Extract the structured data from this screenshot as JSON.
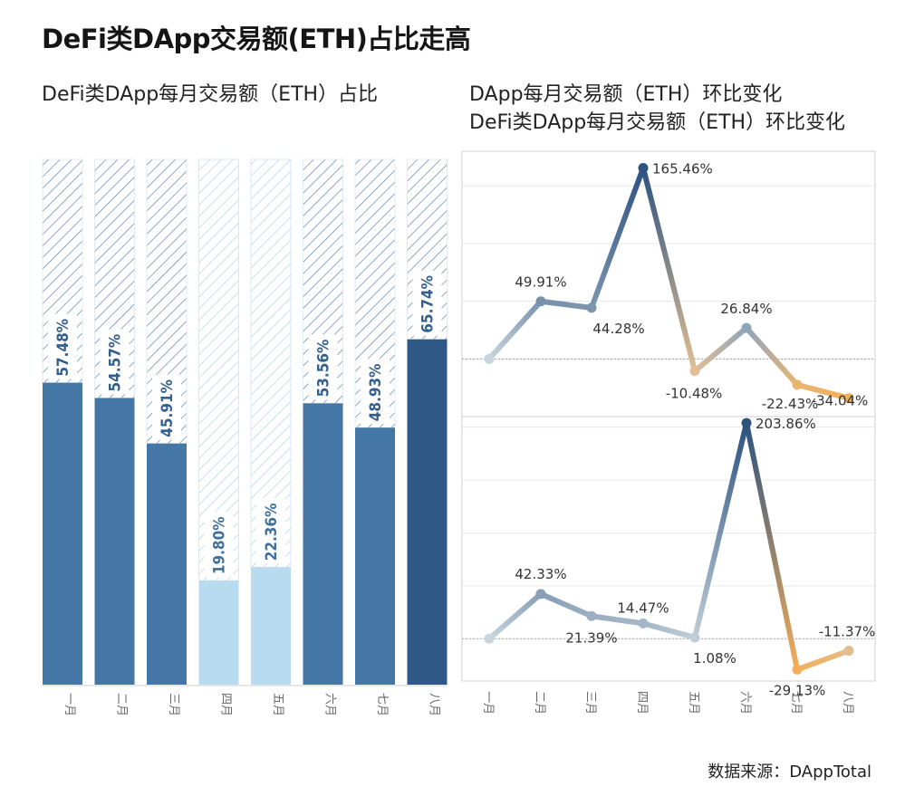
{
  "title": "DeFi类DApp交易额(ETH)占比走高",
  "left_subtitle": "DeFi类DApp每月交易额（ETH）占比",
  "right_subtitle_1": "DApp每月交易额（ETH）环比变化",
  "right_subtitle_2": "DeFi类DApp每月交易额（ETH）环比变化",
  "source": "数据来源：DAppTotal",
  "colors": {
    "bar_dark": "#2e5987",
    "bar_mid": "#4577a6",
    "bar_light": "#b9dbef",
    "line_high": "#2c5280",
    "line_low": "#f2ae5a",
    "line_mid": "#9ec9e6"
  },
  "chart_data": [
    {
      "type": "bar",
      "title": "DeFi类DApp每月交易额（ETH）占比",
      "categories": [
        "一月",
        "二月",
        "三月",
        "四月",
        "五月",
        "六月",
        "七月",
        "八月"
      ],
      "values": [
        57.48,
        54.57,
        45.91,
        19.8,
        22.36,
        53.56,
        48.93,
        65.74
      ],
      "labels": [
        "57.48%",
        "54.57%",
        "45.91%",
        "19.80%",
        "22.36%",
        "53.56%",
        "48.93%",
        "65.74%"
      ],
      "ylim": [
        0,
        100
      ]
    },
    {
      "type": "line",
      "title": "DApp每月交易额（ETH）环比变化",
      "categories": [
        "一月",
        "二月",
        "三月",
        "四月",
        "五月",
        "六月",
        "七月",
        "八月"
      ],
      "values": [
        null,
        49.91,
        44.28,
        165.46,
        -10.48,
        26.84,
        -22.43,
        -34.04
      ],
      "labels": [
        "",
        "49.91%",
        "44.28%",
        "165.46%",
        "-10.48%",
        "26.84%",
        "-22.43%",
        "-34.04%"
      ]
    },
    {
      "type": "line",
      "title": "DeFi类DApp每月交易额（ETH）环比变化",
      "categories": [
        "一月",
        "二月",
        "三月",
        "四月",
        "五月",
        "六月",
        "七月",
        "八月"
      ],
      "values": [
        null,
        42.33,
        21.39,
        14.47,
        1.08,
        203.86,
        -29.13,
        -11.37
      ],
      "labels": [
        "",
        "42.33%",
        "21.39%",
        "14.47%",
        "1.08%",
        "203.86%",
        "-29.13%",
        "-11.37%"
      ]
    }
  ]
}
